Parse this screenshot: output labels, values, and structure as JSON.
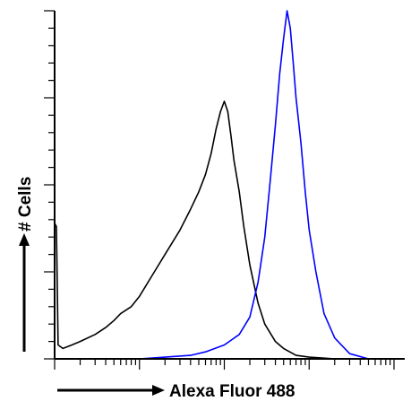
{
  "chart_data": {
    "type": "line",
    "title": "",
    "xlabel": "Alexa Fluor 488",
    "ylabel": "# Cells",
    "x_scale": "log",
    "xlim": [
      1,
      10000
    ],
    "ylim": [
      0,
      100
    ],
    "grid": false,
    "legend": "none",
    "series": [
      {
        "color": "#000000",
        "x": [
          1,
          1.05,
          1.1,
          1.25,
          1.6,
          2,
          3,
          4,
          5,
          6,
          8,
          10,
          15,
          20,
          30,
          40,
          50,
          60,
          70,
          80,
          90,
          100,
          110,
          120,
          130,
          150,
          170,
          200,
          250,
          300,
          400,
          500,
          700,
          1000,
          1500,
          2000
        ],
        "y": [
          39,
          38,
          4,
          3,
          4,
          5,
          7,
          9,
          11,
          13,
          15,
          18,
          25,
          30,
          37,
          43,
          48,
          53,
          59,
          66,
          71,
          74,
          71,
          64,
          57,
          48,
          38,
          27,
          16,
          10,
          5,
          3,
          1,
          0.5,
          0.2,
          0
        ]
      },
      {
        "color": "#0000ff",
        "x": [
          10,
          20,
          40,
          60,
          100,
          150,
          200,
          250,
          300,
          350,
          400,
          450,
          500,
          550,
          600,
          650,
          700,
          800,
          900,
          1000,
          1200,
          1500,
          2000,
          3000,
          5000
        ],
        "y": [
          0,
          0.5,
          1,
          2,
          4,
          7,
          12,
          22,
          35,
          52,
          67,
          82,
          92,
          100,
          95,
          85,
          75,
          62,
          48,
          37,
          25,
          13,
          6,
          1.5,
          0
        ]
      }
    ]
  }
}
